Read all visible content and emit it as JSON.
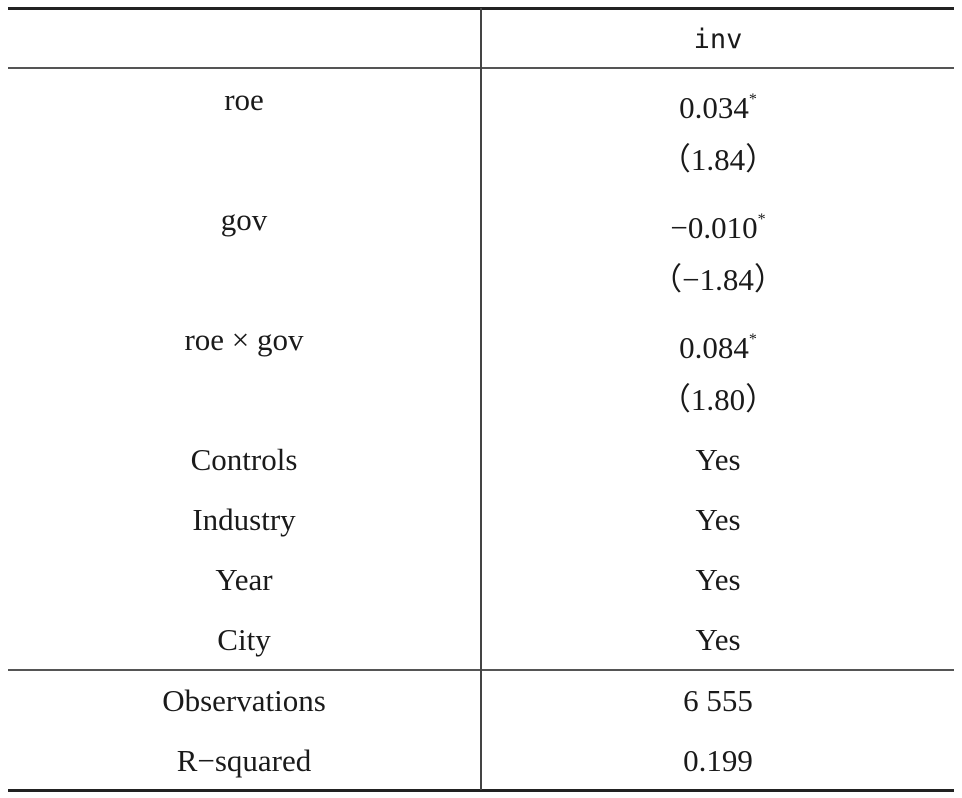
{
  "header": {
    "column": "inv"
  },
  "body": [
    {
      "label": "roe",
      "value": "0.034",
      "sup": "*"
    },
    {
      "value": "（1.84）"
    },
    {
      "label": "gov",
      "value": "−0.010",
      "sup": "*"
    },
    {
      "value": "（−1.84）"
    },
    {
      "label": "roe × gov",
      "value": "0.084",
      "sup": "*"
    },
    {
      "value": "（1.80）"
    },
    {
      "label": "Controls",
      "value": "Yes"
    },
    {
      "label": "Industry",
      "value": "Yes"
    },
    {
      "label": "Year",
      "value": "Yes"
    },
    {
      "label": "City",
      "value": "Yes"
    }
  ],
  "footer": [
    {
      "label": "Observations",
      "value": "6 555"
    },
    {
      "label": "R−squared",
      "value": "0.199"
    }
  ]
}
